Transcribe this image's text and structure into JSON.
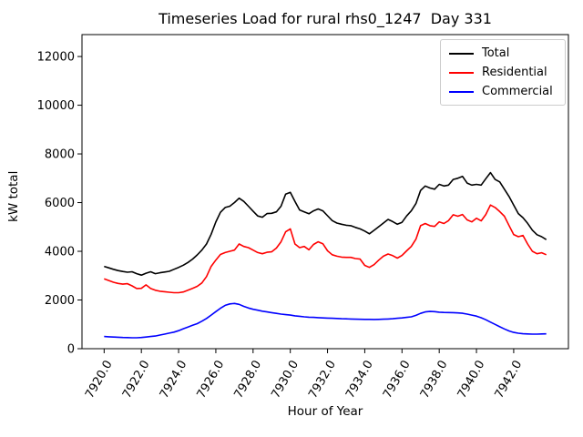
{
  "chart_data": {
    "type": "line",
    "title": "Timeseries Load for rural rhs0_1247  Day 331",
    "xlabel": "Hour of Year",
    "ylabel": "kW total",
    "xlim": [
      7918.81,
      7944.94
    ],
    "ylim": [
      0,
      12900
    ],
    "grid": false,
    "legend": {
      "position": "upper right",
      "entries": [
        "Total",
        "Residential",
        "Commercial"
      ]
    },
    "xticks": [
      7920,
      7922,
      7924,
      7926,
      7928,
      7930,
      7932,
      7934,
      7936,
      7938,
      7940,
      7942
    ],
    "xtick_labels": [
      "7920.0",
      "7922.0",
      "7924.0",
      "7926.0",
      "7928.0",
      "7930.0",
      "7932.0",
      "7934.0",
      "7936.0",
      "7938.0",
      "7940.0",
      "7942.0"
    ],
    "yticks": [
      0,
      2000,
      4000,
      6000,
      8000,
      10000,
      12000
    ],
    "ytick_labels": [
      "0",
      "2000",
      "4000",
      "6000",
      "8000",
      "10000",
      "12000"
    ],
    "x_step_hours": 0.25,
    "x": [
      7920.0,
      7920.25,
      7920.5,
      7920.75,
      7921.0,
      7921.25,
      7921.5,
      7921.75,
      7922.0,
      7922.25,
      7922.5,
      7922.75,
      7923.0,
      7923.25,
      7923.5,
      7923.75,
      7924.0,
      7924.25,
      7924.5,
      7924.75,
      7925.0,
      7925.25,
      7925.5,
      7925.75,
      7926.0,
      7926.25,
      7926.5,
      7926.75,
      7927.0,
      7927.25,
      7927.5,
      7927.75,
      7928.0,
      7928.25,
      7928.5,
      7928.75,
      7929.0,
      7929.25,
      7929.5,
      7929.75,
      7930.0,
      7930.25,
      7930.5,
      7930.75,
      7931.0,
      7931.25,
      7931.5,
      7931.75,
      7932.0,
      7932.25,
      7932.5,
      7932.75,
      7933.0,
      7933.25,
      7933.5,
      7933.75,
      7934.0,
      7934.25,
      7934.5,
      7934.75,
      7935.0,
      7935.25,
      7935.5,
      7935.75,
      7936.0,
      7936.25,
      7936.5,
      7936.75,
      7937.0,
      7937.25,
      7937.5,
      7937.75,
      7938.0,
      7938.25,
      7938.5,
      7938.75,
      7939.0,
      7939.25,
      7939.5,
      7939.75,
      7940.0,
      7940.25,
      7940.5,
      7940.75,
      7941.0,
      7941.25,
      7941.5,
      7941.75,
      7942.0,
      7942.25,
      7942.5,
      7942.75,
      7943.0,
      7943.25,
      7943.5,
      7943.75
    ],
    "series": [
      {
        "name": "Total",
        "color": "#000000",
        "values": [
          3380,
          3320,
          3260,
          3210,
          3170,
          3140,
          3160,
          3080,
          3020,
          3100,
          3160,
          3080,
          3120,
          3150,
          3180,
          3260,
          3340,
          3430,
          3540,
          3680,
          3850,
          4050,
          4300,
          4700,
          5200,
          5600,
          5800,
          5850,
          6000,
          6180,
          6050,
          5850,
          5650,
          5450,
          5400,
          5550,
          5560,
          5620,
          5850,
          6350,
          6420,
          6050,
          5700,
          5620,
          5540,
          5660,
          5740,
          5660,
          5460,
          5260,
          5160,
          5110,
          5070,
          5050,
          4980,
          4920,
          4830,
          4720,
          4860,
          5010,
          5160,
          5310,
          5220,
          5110,
          5190,
          5450,
          5660,
          5960,
          6500,
          6680,
          6600,
          6550,
          6750,
          6680,
          6720,
          6950,
          7000,
          7080,
          6800,
          6720,
          6750,
          6720,
          6980,
          7230,
          6950,
          6850,
          6550,
          6250,
          5900,
          5550,
          5380,
          5150,
          4870,
          4680,
          4600,
          4480
        ]
      },
      {
        "name": "Residential",
        "color": "#ff0000",
        "values": [
          2870,
          2800,
          2730,
          2680,
          2650,
          2670,
          2580,
          2470,
          2480,
          2620,
          2470,
          2400,
          2360,
          2340,
          2320,
          2300,
          2300,
          2330,
          2400,
          2480,
          2560,
          2700,
          2960,
          3380,
          3640,
          3870,
          3950,
          4000,
          4050,
          4300,
          4200,
          4150,
          4050,
          3950,
          3900,
          3960,
          3980,
          4130,
          4390,
          4800,
          4920,
          4300,
          4150,
          4200,
          4060,
          4280,
          4390,
          4310,
          4020,
          3860,
          3800,
          3760,
          3750,
          3750,
          3700,
          3680,
          3420,
          3340,
          3450,
          3640,
          3800,
          3890,
          3820,
          3720,
          3830,
          4020,
          4200,
          4500,
          5050,
          5140,
          5050,
          5020,
          5210,
          5140,
          5260,
          5500,
          5440,
          5510,
          5290,
          5210,
          5360,
          5250,
          5510,
          5900,
          5800,
          5630,
          5440,
          5060,
          4690,
          4600,
          4650,
          4300,
          4000,
          3900,
          3940,
          3860
        ]
      },
      {
        "name": "Commercial",
        "color": "#0000ff",
        "values": [
          500,
          490,
          480,
          470,
          460,
          455,
          450,
          450,
          460,
          480,
          500,
          520,
          560,
          600,
          640,
          680,
          740,
          820,
          890,
          960,
          1030,
          1130,
          1240,
          1380,
          1520,
          1660,
          1780,
          1840,
          1860,
          1820,
          1740,
          1670,
          1620,
          1580,
          1540,
          1510,
          1480,
          1450,
          1420,
          1400,
          1380,
          1350,
          1330,
          1310,
          1295,
          1285,
          1275,
          1265,
          1255,
          1248,
          1240,
          1232,
          1225,
          1218,
          1212,
          1208,
          1205,
          1203,
          1202,
          1205,
          1210,
          1220,
          1232,
          1248,
          1265,
          1285,
          1310,
          1370,
          1450,
          1510,
          1530,
          1520,
          1500,
          1490,
          1485,
          1480,
          1470,
          1455,
          1420,
          1380,
          1340,
          1270,
          1190,
          1090,
          1000,
          900,
          810,
          730,
          670,
          635,
          615,
          605,
          600,
          600,
          605,
          610
        ]
      }
    ]
  },
  "colors": {
    "background": "#ffffff",
    "axis": "#000000",
    "legend_border": "#cccccc"
  }
}
